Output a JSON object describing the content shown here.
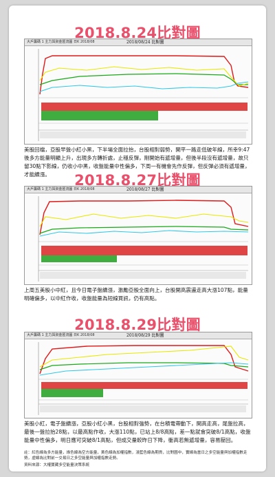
{
  "sections": [
    {
      "title": "2018.8.24比對圖",
      "chart_header": "大戶籌碼 1 主力與資金匯流圖 日K 2018/08",
      "chart_date": "2018/08/24  比對圖",
      "description": "美股回檔，亞股早盤小紅小黑，下半場全面拉抬，台股相對弱勢，開平一路走低破年線，所幸9:47後多方能量明顯上升，出現多方轉折處，止穩反彈，剛開始有遞增量，但後半段沒有遞增量，故只留30點下影線，仍收小中黑，收盤能量中性偏多，下周一有機會先作反彈，但反彈必須有遞增量，才能續漲。"
    },
    {
      "title": "2018.8.27比對圖",
      "chart_header": "大戶籌碼 1 主力與資金匯流圖 日K 2018/08",
      "chart_date": "2018/08/27  比對圖",
      "description": "上周五美股小中紅，且今日電子盤續漲，激勵亞股全面向上，台股開高震盪走高大漲107點，能量明確偏多，以中紅作收，收盤能量為短線買訊，仍有高點。"
    },
    {
      "title": "2018.8.29比對圖",
      "chart_header": "大戶籌碼 1 主力與資金匯流圖 日K 2018/08",
      "chart_date": "2018/08/29  比對圖",
      "description": "美股小紅，電子盤續漲，亞股小紅小黑，台股相對強勢，在台積電帶動下，開高走高，尾盤拉高，最後一盤拉抬28點，以最高點作收，大漲110點，已站上8/8高點，差一點就會突破8/1高點，收盤能量中性偏多，明日應可突破8/1高點，但成交量較昨日下降，衝高若無遞增量，容易壓回。"
    }
  ],
  "footnote": "註：紅色線為多方能量，綠色線為空方能量，黃色線為加權指數，淺藍色線為期貨，比對圖中，實線為當日之多空能量與加權指數走勢，虛線為比對前一交易日之多空能量與加權指數走勢。",
  "source": "資料來源：大權寶藏多空能量決策系統",
  "colors": {
    "title": "#e8506b",
    "long_energy": "#e01818",
    "short_energy": "#18a818",
    "index": "#e8e800",
    "futures": "#30c8e8"
  }
}
